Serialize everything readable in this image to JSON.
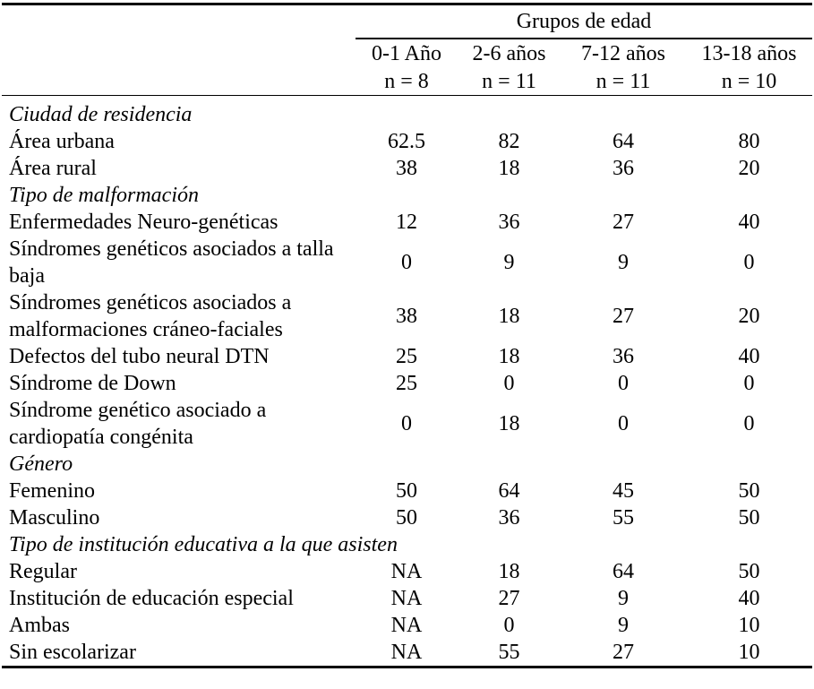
{
  "colors": {
    "text": "#000000",
    "background": "#ffffff",
    "rule": "#000000"
  },
  "table": {
    "group_header": "Grupos de edad",
    "columns": [
      {
        "label": "0-1 Año",
        "n": "n = 8"
      },
      {
        "label": "2-6 años",
        "n": "n = 11"
      },
      {
        "label": "7-12 años",
        "n": "n = 11"
      },
      {
        "label": "13-18 años",
        "n": "n = 10"
      }
    ],
    "rows": [
      {
        "type": "section",
        "label": "Ciudad de residencia"
      },
      {
        "type": "data",
        "label": "Área urbana",
        "values": [
          "62.5",
          "82",
          "64",
          "80"
        ]
      },
      {
        "type": "data",
        "label": "Área rural",
        "values": [
          "38",
          "18",
          "36",
          "20"
        ]
      },
      {
        "type": "section",
        "label": "Tipo de malformación"
      },
      {
        "type": "data",
        "label": "Enfermedades Neuro-genéticas",
        "values": [
          "12",
          "36",
          "27",
          "40"
        ]
      },
      {
        "type": "data",
        "label": "Síndromes genéticos asociados a talla baja",
        "values": [
          "0",
          "9",
          "9",
          "0"
        ]
      },
      {
        "type": "data",
        "label": "Síndromes genéticos asociados a malformaciones cráneo-faciales",
        "values": [
          "38",
          "18",
          "27",
          "20"
        ]
      },
      {
        "type": "data",
        "label": "Defectos del tubo neural DTN",
        "values": [
          "25",
          "18",
          "36",
          "40"
        ]
      },
      {
        "type": "data",
        "label": "Síndrome de Down",
        "values": [
          "25",
          "0",
          "0",
          "0"
        ]
      },
      {
        "type": "data",
        "label": "Síndrome genético asociado a cardiopatía congénita",
        "values": [
          "0",
          "18",
          "0",
          "0"
        ]
      },
      {
        "type": "section",
        "label": "Género"
      },
      {
        "type": "data",
        "label": "Femenino",
        "values": [
          "50",
          "64",
          "45",
          "50"
        ]
      },
      {
        "type": "data",
        "label": "Masculino",
        "values": [
          "50",
          "36",
          "55",
          "50"
        ]
      },
      {
        "type": "section",
        "label": "Tipo de institución educativa a la que asisten"
      },
      {
        "type": "data",
        "label": "Regular",
        "values": [
          "NA",
          "18",
          "64",
          "50"
        ]
      },
      {
        "type": "data",
        "label": "Institución de educación especial",
        "values": [
          "NA",
          "27",
          "9",
          "40"
        ]
      },
      {
        "type": "data",
        "label": "Ambas",
        "values": [
          "NA",
          "0",
          "9",
          "10"
        ]
      },
      {
        "type": "data",
        "label": "Sin escolarizar",
        "values": [
          "NA",
          "55",
          "27",
          "10"
        ]
      }
    ]
  }
}
